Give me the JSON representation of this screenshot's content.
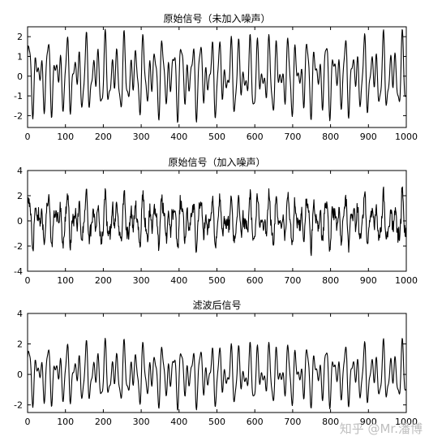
{
  "chart_data": [
    {
      "type": "line",
      "title": "原始信号（未加入噪声）",
      "xlim": [
        0,
        1000
      ],
      "ylim": [
        -2.6,
        2.5
      ],
      "xticks": [
        0,
        100,
        200,
        300,
        400,
        500,
        600,
        700,
        800,
        900,
        1000
      ],
      "yticks": [
        -2,
        -1,
        0,
        1,
        2
      ],
      "grid": false,
      "series": [
        {
          "noise": 0,
          "amplitude_range": [
            -2.5,
            2.4
          ],
          "samples": 1000
        }
      ]
    },
    {
      "type": "line",
      "title": "原始信号（加入噪声）",
      "xlim": [
        0,
        1000
      ],
      "ylim": [
        -4,
        4
      ],
      "xticks": [
        0,
        100,
        200,
        300,
        400,
        500,
        600,
        700,
        800,
        900,
        1000
      ],
      "yticks": [
        -4,
        -2,
        0,
        2,
        4
      ],
      "grid": false,
      "series": [
        {
          "noise": 0.35,
          "amplitude_range": [
            -3.0,
            3.2
          ],
          "samples": 1000
        }
      ]
    },
    {
      "type": "line",
      "title": "滤波后信号",
      "xlim": [
        0,
        1000
      ],
      "ylim": [
        -2.5,
        4
      ],
      "xticks": [
        0,
        100,
        200,
        300,
        400,
        500,
        600,
        700,
        800,
        900,
        1000
      ],
      "yticks": [
        -2,
        0,
        2,
        4
      ],
      "grid": false,
      "series": [
        {
          "noise": 0,
          "amplitude_range": [
            -2.5,
            3.0
          ],
          "samples": 1000
        }
      ]
    }
  ],
  "watermark": "知乎 @Mr.潘博"
}
